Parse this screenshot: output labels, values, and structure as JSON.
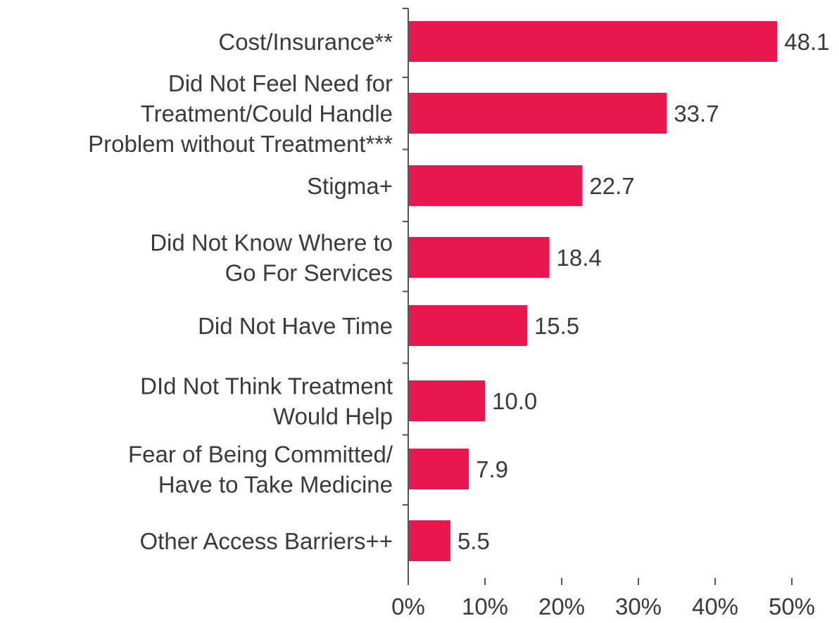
{
  "chart_data": {
    "type": "bar",
    "orientation": "horizontal",
    "categories": [
      {
        "lines": [
          "Cost/Insurance**"
        ]
      },
      {
        "lines": [
          "Did Not Feel Need for",
          "Treatment/Could Handle",
          "Problem without Treatment***"
        ]
      },
      {
        "lines": [
          "Stigma+"
        ]
      },
      {
        "lines": [
          "Did Not Know Where to",
          "Go For Services"
        ]
      },
      {
        "lines": [
          "Did Not Have Time"
        ]
      },
      {
        "lines": [
          "DId Not Think Treatment",
          "Would Help"
        ]
      },
      {
        "lines": [
          "Fear of Being Committed/",
          "Have to Take Medicine"
        ]
      },
      {
        "lines": [
          "Other Access Barriers++"
        ]
      }
    ],
    "values": [
      48.1,
      33.7,
      22.7,
      18.4,
      15.5,
      10.0,
      7.9,
      5.5
    ],
    "value_labels": [
      "48.1",
      "33.7",
      "22.7",
      "18.4",
      "15.5",
      "10.0",
      "7.9",
      "5.5"
    ],
    "x_ticks": [
      0,
      10,
      20,
      30,
      40,
      50
    ],
    "x_tick_labels": [
      "0%",
      "10%",
      "20%",
      "30%",
      "40%",
      "50%"
    ],
    "xlim": [
      0,
      50
    ],
    "bar_color": "#e8184f",
    "grid": false,
    "legend": "none"
  }
}
